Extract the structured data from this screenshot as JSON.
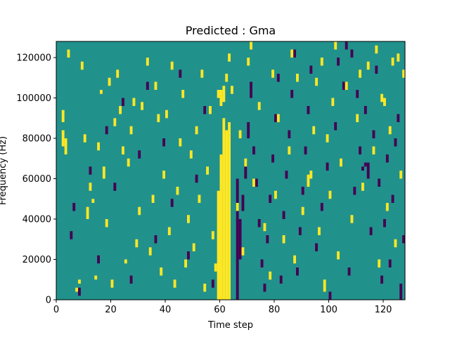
{
  "chart_data": {
    "type": "heatmap",
    "title": "Predicted : Gma",
    "xlabel": "Time step",
    "ylabel": "Frequency (Hz)",
    "xlim": [
      0,
      128
    ],
    "ylim": [
      0,
      128000
    ],
    "x_ticks": [
      0,
      20,
      40,
      60,
      80,
      100,
      120
    ],
    "y_ticks": [
      0,
      20000,
      40000,
      60000,
      80000,
      100000,
      120000
    ],
    "grid": false,
    "legend": "none",
    "colormap": "viridis",
    "colors": {
      "low": "#440154",
      "mid": "#21918c",
      "high": "#fde725"
    },
    "n_time_steps": 128,
    "n_freq_bins": 64,
    "freq_bin_width_hz": 2000,
    "background_value": 0,
    "cell_values": {
      "low": -1,
      "mid": 0,
      "high": 1
    },
    "high_cells": [
      [
        60,
        0,
        36
      ],
      [
        61,
        0,
        45
      ],
      [
        62,
        0,
        42
      ],
      [
        63,
        0,
        44
      ],
      [
        59,
        0,
        27
      ],
      [
        60,
        48,
        52
      ],
      [
        61,
        49,
        53
      ],
      [
        62,
        54,
        56
      ],
      [
        59,
        50,
        52
      ],
      [
        2,
        38,
        42
      ],
      [
        2,
        44,
        47
      ],
      [
        3,
        36,
        40
      ],
      [
        7,
        2,
        3
      ],
      [
        8,
        4,
        5
      ],
      [
        10,
        39,
        41
      ],
      [
        11,
        20,
        23
      ],
      [
        12,
        27,
        29
      ],
      [
        13,
        24,
        25
      ],
      [
        14,
        5,
        6
      ],
      [
        15,
        37,
        39
      ],
      [
        16,
        51,
        52
      ],
      [
        17,
        30,
        33
      ],
      [
        18,
        18,
        20
      ],
      [
        20,
        3,
        5
      ],
      [
        21,
        43,
        45
      ],
      [
        22,
        55,
        57
      ],
      [
        23,
        46,
        48
      ],
      [
        24,
        36,
        38
      ],
      [
        25,
        9,
        10
      ],
      [
        26,
        33,
        35
      ],
      [
        27,
        41,
        43
      ],
      [
        29,
        13,
        15
      ],
      [
        30,
        21,
        23
      ],
      [
        31,
        47,
        49
      ],
      [
        34,
        11,
        13
      ],
      [
        35,
        24,
        26
      ],
      [
        36,
        52,
        54
      ],
      [
        38,
        6,
        8
      ],
      [
        39,
        30,
        32
      ],
      [
        40,
        45,
        47
      ],
      [
        41,
        16,
        18
      ],
      [
        42,
        57,
        59
      ],
      [
        43,
        3,
        5
      ],
      [
        44,
        26,
        28
      ],
      [
        45,
        38,
        40
      ],
      [
        46,
        50,
        52
      ],
      [
        47,
        8,
        10
      ],
      [
        48,
        19,
        21
      ],
      [
        49,
        35,
        37
      ],
      [
        50,
        12,
        14
      ],
      [
        51,
        41,
        43
      ],
      [
        52,
        24,
        26
      ],
      [
        53,
        55,
        57
      ],
      [
        54,
        2,
        4
      ],
      [
        55,
        31,
        33
      ],
      [
        56,
        46,
        48
      ],
      [
        57,
        15,
        17
      ],
      [
        58,
        7,
        9
      ],
      [
        66,
        22,
        24
      ],
      [
        67,
        40,
        42
      ],
      [
        68,
        11,
        13
      ],
      [
        69,
        33,
        35
      ],
      [
        70,
        58,
        60
      ],
      [
        72,
        28,
        30
      ],
      [
        74,
        47,
        49
      ],
      [
        76,
        17,
        19
      ],
      [
        78,
        5,
        7
      ],
      [
        80,
        25,
        27
      ],
      [
        81,
        44,
        46
      ],
      [
        83,
        14,
        16
      ],
      [
        85,
        36,
        38
      ],
      [
        87,
        9,
        11
      ],
      [
        88,
        54,
        56
      ],
      [
        90,
        21,
        23
      ],
      [
        92,
        28,
        31
      ],
      [
        93,
        30,
        32
      ],
      [
        94,
        41,
        43
      ],
      [
        96,
        16,
        18
      ],
      [
        98,
        2,
        5
      ],
      [
        99,
        39,
        41
      ],
      [
        100,
        25,
        27
      ],
      [
        101,
        48,
        50
      ],
      [
        103,
        10,
        12
      ],
      [
        104,
        33,
        35
      ],
      [
        106,
        52,
        54
      ],
      [
        108,
        19,
        21
      ],
      [
        110,
        44,
        46
      ],
      [
        112,
        27,
        29
      ],
      [
        114,
        57,
        59
      ],
      [
        116,
        36,
        38
      ],
      [
        118,
        8,
        10
      ],
      [
        119,
        49,
        51
      ],
      [
        121,
        22,
        24
      ],
      [
        122,
        41,
        43
      ],
      [
        124,
        13,
        15
      ],
      [
        125,
        59,
        61
      ],
      [
        126,
        30,
        32
      ],
      [
        127,
        55,
        57
      ],
      [
        4,
        60,
        62
      ],
      [
        9,
        57,
        59
      ],
      [
        19,
        53,
        55
      ],
      [
        28,
        48,
        50
      ],
      [
        33,
        58,
        60
      ],
      [
        37,
        44,
        46
      ],
      [
        63,
        59,
        61
      ],
      [
        64,
        51,
        53
      ],
      [
        71,
        62,
        64
      ],
      [
        79,
        55,
        57
      ],
      [
        86,
        60,
        62
      ],
      [
        95,
        53,
        55
      ],
      [
        97,
        58,
        60
      ],
      [
        102,
        62,
        64
      ],
      [
        111,
        55,
        57
      ],
      [
        117,
        61,
        63
      ],
      [
        120,
        48,
        50
      ],
      [
        123,
        58,
        60
      ]
    ],
    "low_cells": [
      [
        66,
        0,
        30
      ],
      [
        67,
        10,
        20
      ],
      [
        68,
        22,
        26
      ],
      [
        69,
        30,
        34
      ],
      [
        70,
        40,
        44
      ],
      [
        71,
        50,
        54
      ],
      [
        72,
        36,
        38
      ],
      [
        73,
        28,
        30
      ],
      [
        74,
        18,
        20
      ],
      [
        75,
        8,
        10
      ],
      [
        76,
        2,
        4
      ],
      [
        77,
        14,
        16
      ],
      [
        78,
        24,
        26
      ],
      [
        79,
        34,
        36
      ],
      [
        80,
        44,
        46
      ],
      [
        81,
        54,
        56
      ],
      [
        82,
        4,
        6
      ],
      [
        83,
        20,
        22
      ],
      [
        84,
        30,
        32
      ],
      [
        85,
        40,
        42
      ],
      [
        86,
        50,
        52
      ],
      [
        87,
        60,
        62
      ],
      [
        88,
        6,
        8
      ],
      [
        89,
        16,
        18
      ],
      [
        90,
        26,
        28
      ],
      [
        91,
        36,
        38
      ],
      [
        92,
        46,
        48
      ],
      [
        93,
        56,
        58
      ],
      [
        5,
        15,
        17
      ],
      [
        6,
        22,
        24
      ],
      [
        8,
        1,
        3
      ],
      [
        12,
        31,
        33
      ],
      [
        15,
        9,
        11
      ],
      [
        18,
        41,
        43
      ],
      [
        21,
        27,
        29
      ],
      [
        24,
        48,
        50
      ],
      [
        27,
        4,
        6
      ],
      [
        30,
        35,
        37
      ],
      [
        33,
        52,
        54
      ],
      [
        36,
        14,
        16
      ],
      [
        39,
        38,
        40
      ],
      [
        42,
        23,
        25
      ],
      [
        45,
        55,
        57
      ],
      [
        48,
        10,
        12
      ],
      [
        51,
        29,
        31
      ],
      [
        54,
        46,
        48
      ],
      [
        57,
        3,
        5
      ],
      [
        95,
        12,
        14
      ],
      [
        97,
        22,
        24
      ],
      [
        99,
        32,
        34
      ],
      [
        102,
        42,
        44
      ],
      [
        105,
        52,
        54
      ],
      [
        107,
        6,
        8
      ],
      [
        109,
        26,
        28
      ],
      [
        111,
        36,
        38
      ],
      [
        113,
        46,
        48
      ],
      [
        115,
        16,
        18
      ],
      [
        117,
        56,
        58
      ],
      [
        119,
        4,
        6
      ],
      [
        121,
        34,
        36
      ],
      [
        123,
        24,
        26
      ],
      [
        125,
        44,
        46
      ],
      [
        126,
        0,
        4
      ],
      [
        127,
        14,
        16
      ],
      [
        114,
        30,
        34
      ],
      [
        112,
        32,
        33
      ],
      [
        113,
        33,
        34
      ],
      [
        100,
        0,
        2
      ],
      [
        103,
        58,
        60
      ],
      [
        106,
        62,
        64
      ],
      [
        108,
        60,
        62
      ],
      [
        110,
        50,
        52
      ],
      [
        116,
        40,
        42
      ],
      [
        118,
        28,
        30
      ],
      [
        120,
        18,
        20
      ],
      [
        122,
        8,
        10
      ],
      [
        124,
        38,
        40
      ]
    ]
  }
}
